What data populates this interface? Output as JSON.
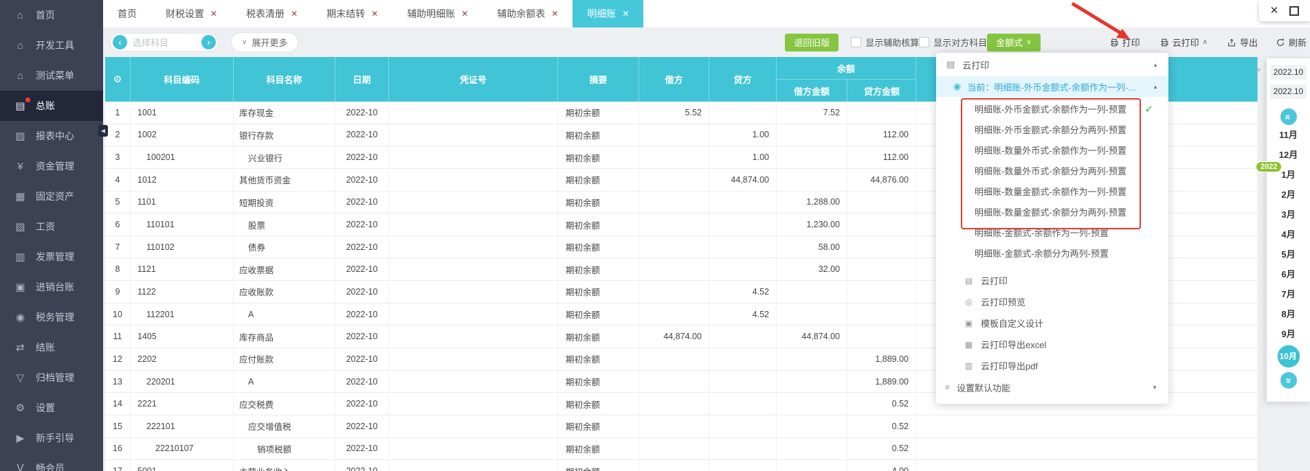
{
  "window": {
    "close": "✕"
  },
  "sidebar": {
    "active_index": 3,
    "items": [
      {
        "label": "首页",
        "icon": "home-icon"
      },
      {
        "label": "开发工具",
        "icon": "dev-tools-icon"
      },
      {
        "label": "测试菜单",
        "icon": "test-menu-icon"
      },
      {
        "label": "总账",
        "icon": "general-ledger-icon",
        "notification_dot": true
      },
      {
        "label": "报表中心",
        "icon": "report-center-icon"
      },
      {
        "label": "资金管理",
        "icon": "funds-icon"
      },
      {
        "label": "固定资产",
        "icon": "fixed-assets-icon"
      },
      {
        "label": "工资",
        "icon": "payroll-icon"
      },
      {
        "label": "发票管理",
        "icon": "invoice-icon"
      },
      {
        "label": "进销台账",
        "icon": "purchase-sales-icon"
      },
      {
        "label": "税务管理",
        "icon": "tax-icon"
      },
      {
        "label": "结账",
        "icon": "closing-icon"
      },
      {
        "label": "归档管理",
        "icon": "archive-icon"
      },
      {
        "label": "设置",
        "icon": "settings-icon"
      },
      {
        "label": "新手引导",
        "icon": "guide-icon"
      },
      {
        "label": "畅会员",
        "icon": "membership-icon"
      }
    ]
  },
  "tabs": [
    {
      "label": "首页",
      "closable": false,
      "active": false
    },
    {
      "label": "财税设置",
      "closable": true,
      "active": false
    },
    {
      "label": "税表清册",
      "closable": true,
      "active": false
    },
    {
      "label": "期末结转",
      "closable": true,
      "active": false
    },
    {
      "label": "辅助明细账",
      "closable": true,
      "active": false
    },
    {
      "label": "辅助余额表",
      "closable": true,
      "active": false
    },
    {
      "label": "明细账",
      "closable": true,
      "active": true
    }
  ],
  "toolbar": {
    "subject_placeholder": "选择科目",
    "expand_more": "展开更多",
    "back_old_version": "退回旧版",
    "show_aux_accounting": "显示辅助核算",
    "show_opposite_subject": "显示对方科目",
    "amount_style": "金额式",
    "print": "打印",
    "cloud_print": "云打印",
    "export": "导出",
    "refresh": "刷新"
  },
  "table": {
    "headers": {
      "code": "科目编码",
      "name": "科目名称",
      "date": "日期",
      "voucher": "凭证号",
      "summary": "摘要",
      "debit": "借方",
      "credit": "贷方",
      "balance": "余额",
      "balance_debit": "借方金额",
      "balance_credit": "贷方金额"
    },
    "rows": [
      {
        "seq": 1,
        "code": "1001",
        "name": "库存现金",
        "date": "2022-10",
        "voucher": "",
        "summary": "期初余额",
        "debit": "5.52",
        "credit": "",
        "bal_debit": "7.52",
        "bal_credit": "",
        "level": 0
      },
      {
        "seq": 2,
        "code": "1002",
        "name": "银行存款",
        "date": "2022-10",
        "voucher": "",
        "summary": "期初余额",
        "debit": "",
        "credit": "1.00",
        "bal_debit": "",
        "bal_credit": "112.00",
        "level": 0
      },
      {
        "seq": 3,
        "code": "100201",
        "name": "兴业银行",
        "date": "2022-10",
        "voucher": "",
        "summary": "期初余额",
        "debit": "",
        "credit": "1.00",
        "bal_debit": "",
        "bal_credit": "112.00",
        "level": 1
      },
      {
        "seq": 4,
        "code": "1012",
        "name": "其他货币资金",
        "date": "2022-10",
        "voucher": "",
        "summary": "期初余额",
        "debit": "",
        "credit": "44,874.00",
        "bal_debit": "",
        "bal_credit": "44,876.00",
        "level": 0
      },
      {
        "seq": 5,
        "code": "1101",
        "name": "短期投资",
        "date": "2022-10",
        "voucher": "",
        "summary": "期初余额",
        "debit": "",
        "credit": "",
        "bal_debit": "1,288.00",
        "bal_credit": "",
        "level": 0
      },
      {
        "seq": 6,
        "code": "110101",
        "name": "股票",
        "date": "2022-10",
        "voucher": "",
        "summary": "期初余额",
        "debit": "",
        "credit": "",
        "bal_debit": "1,230.00",
        "bal_credit": "",
        "level": 1
      },
      {
        "seq": 7,
        "code": "110102",
        "name": "债券",
        "date": "2022-10",
        "voucher": "",
        "summary": "期初余额",
        "debit": "",
        "credit": "",
        "bal_debit": "58.00",
        "bal_credit": "",
        "level": 1
      },
      {
        "seq": 8,
        "code": "1121",
        "name": "应收票据",
        "date": "2022-10",
        "voucher": "",
        "summary": "期初余额",
        "debit": "",
        "credit": "",
        "bal_debit": "32.00",
        "bal_credit": "",
        "level": 0
      },
      {
        "seq": 9,
        "code": "1122",
        "name": "应收账款",
        "date": "2022-10",
        "voucher": "",
        "summary": "期初余额",
        "debit": "",
        "credit": "4.52",
        "bal_debit": "",
        "bal_credit": "",
        "level": 0
      },
      {
        "seq": 10,
        "code": "112201",
        "name": "A",
        "date": "2022-10",
        "voucher": "",
        "summary": "期初余额",
        "debit": "",
        "credit": "4.52",
        "bal_debit": "",
        "bal_credit": "",
        "level": 1
      },
      {
        "seq": 11,
        "code": "1405",
        "name": "库存商品",
        "date": "2022-10",
        "voucher": "",
        "summary": "期初余额",
        "debit": "44,874.00",
        "credit": "",
        "bal_debit": "44,874.00",
        "bal_credit": "",
        "level": 0
      },
      {
        "seq": 12,
        "code": "2202",
        "name": "应付账款",
        "date": "2022-10",
        "voucher": "",
        "summary": "期初余额",
        "debit": "",
        "credit": "",
        "bal_debit": "",
        "bal_credit": "1,889.00",
        "level": 0
      },
      {
        "seq": 13,
        "code": "220201",
        "name": "A",
        "date": "2022-10",
        "voucher": "",
        "summary": "期初余额",
        "debit": "",
        "credit": "",
        "bal_debit": "",
        "bal_credit": "1,889.00",
        "level": 1
      },
      {
        "seq": 14,
        "code": "2221",
        "name": "应交税费",
        "date": "2022-10",
        "voucher": "",
        "summary": "期初余额",
        "debit": "",
        "credit": "",
        "bal_debit": "",
        "bal_credit": "0.52",
        "level": 0
      },
      {
        "seq": 15,
        "code": "222101",
        "name": "应交增值税",
        "date": "2022-10",
        "voucher": "",
        "summary": "期初余额",
        "debit": "",
        "credit": "",
        "bal_debit": "",
        "bal_credit": "0.52",
        "level": 1
      },
      {
        "seq": 16,
        "code": "22210107",
        "name": "销项税额",
        "date": "2022-10",
        "voucher": "",
        "summary": "期初余额",
        "debit": "",
        "credit": "",
        "bal_debit": "",
        "bal_credit": "0.52",
        "level": 2
      },
      {
        "seq": 17,
        "code": "5001",
        "name": "主营业务收入",
        "date": "2022-10",
        "voucher": "",
        "summary": "期初余额",
        "debit": "",
        "credit": "",
        "bal_debit": "",
        "bal_credit": "4.00",
        "level": 0
      }
    ]
  },
  "cloud_print_menu": {
    "title": "云打印",
    "current": "当前：明细账-外币金额式-余额作为一列-...",
    "templates": [
      {
        "label": "明细账-外币金额式-余额作为一列-预置",
        "checked": true
      },
      {
        "label": "明细账-外币金额式-余额分为两列-预置",
        "checked": false
      },
      {
        "label": "明细账-数量外币式-余额作为一列-预置",
        "checked": false
      },
      {
        "label": "明细账-数量外币式-余额分为两列-预置",
        "checked": false
      },
      {
        "label": "明细账-数量金额式-余额作为一列-预置",
        "checked": false
      },
      {
        "label": "明细账-数量金额式-余额分为两列-预置",
        "checked": false
      },
      {
        "label": "明细账-金额式-余额作为一列-预置",
        "checked": false
      },
      {
        "label": "明细账-金额式-余额分为两列-预置",
        "checked": false
      }
    ],
    "highlighted_count": 6,
    "actions": [
      {
        "label": "云打印",
        "icon": "cloud-print-icon"
      },
      {
        "label": "云打印预览",
        "icon": "print-preview-icon"
      },
      {
        "label": "模板自定义设计",
        "icon": "template-design-icon"
      },
      {
        "label": "云打印导出excel",
        "icon": "export-excel-icon"
      },
      {
        "label": "云打印导出pdf",
        "icon": "export-pdf-icon"
      }
    ],
    "footer": "设置默认功能"
  },
  "month_panel": {
    "period_start": "2022.10",
    "period_end": "2022.10",
    "year_badge": "2022",
    "months": [
      "11月",
      "12月",
      "1月",
      "2月",
      "3月",
      "4月",
      "5月",
      "6月",
      "7月",
      "8月",
      "9月",
      "10月"
    ],
    "selected_month": "10月"
  }
}
